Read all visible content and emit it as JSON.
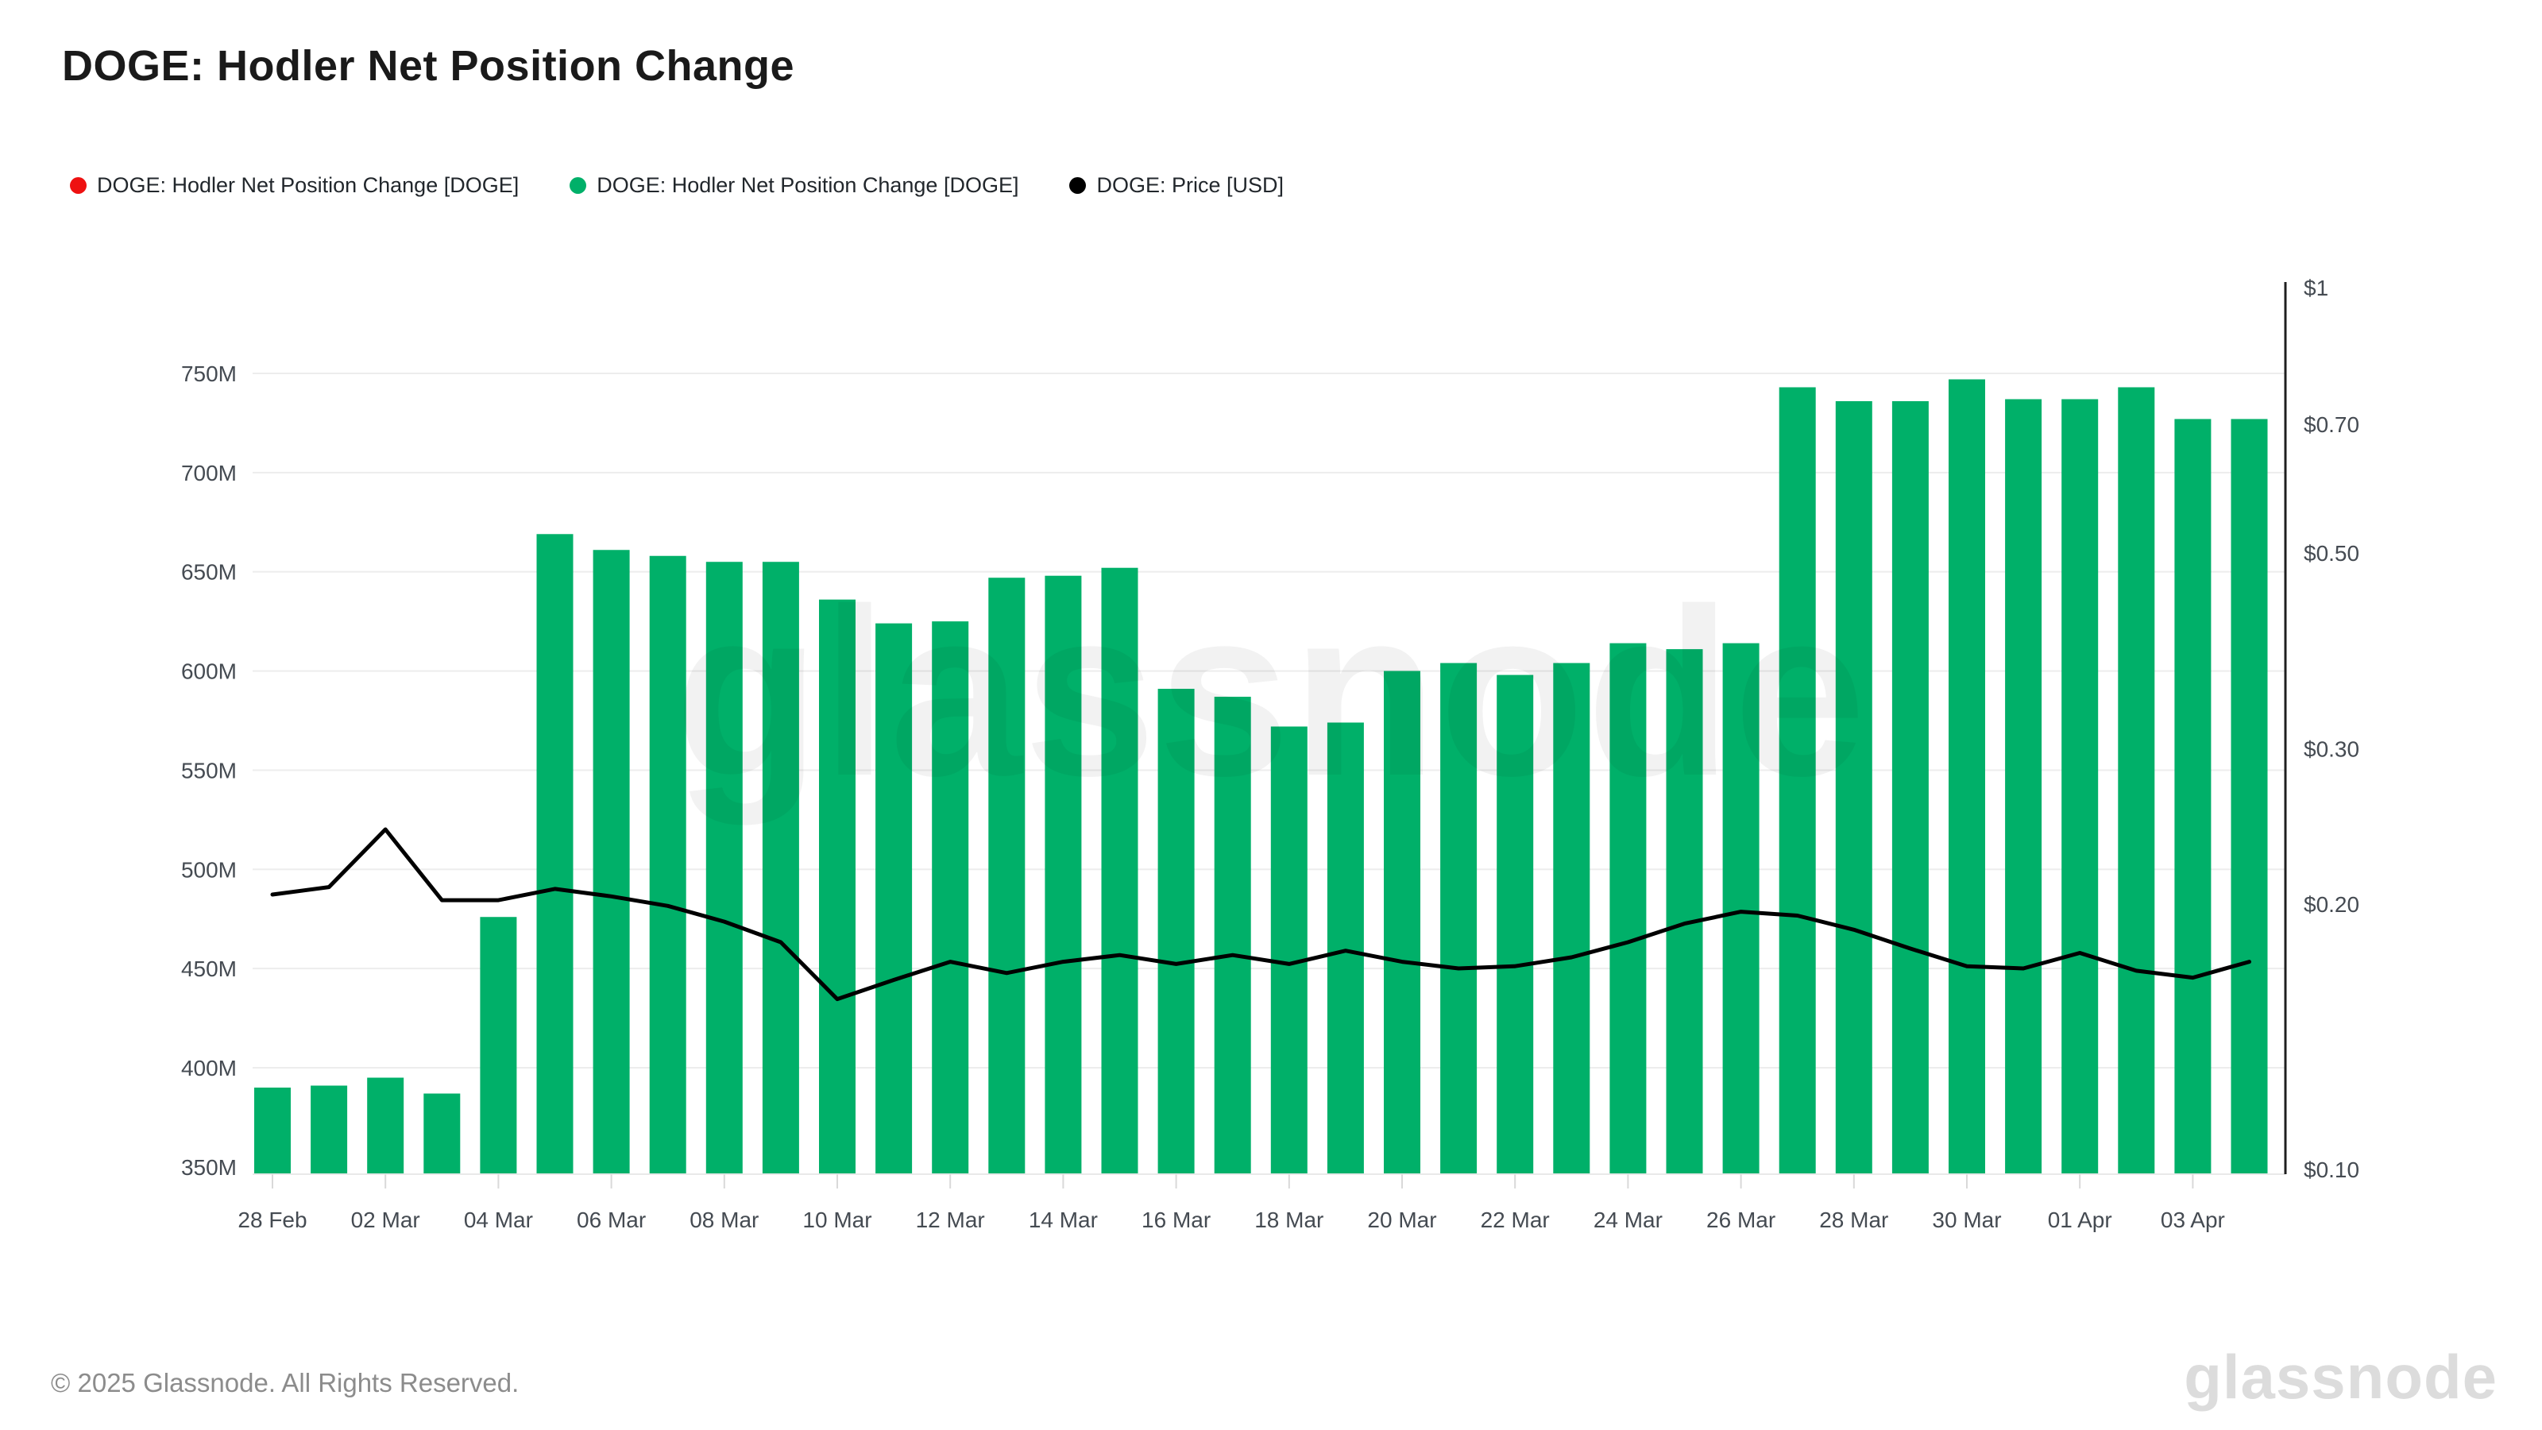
{
  "page": {
    "title": "DOGE: Hodler Net Position Change"
  },
  "legend": [
    {
      "label": "DOGE: Hodler Net Position Change [DOGE]",
      "color": "#ee1111"
    },
    {
      "label": "DOGE: Hodler Net Position Change [DOGE]",
      "color": "#00b069"
    },
    {
      "label": "DOGE: Price [USD]",
      "color": "#000000"
    }
  ],
  "watermark": "glassnode",
  "footer": {
    "copyright": "© 2025 Glassnode. All Rights Reserved.",
    "logo": "glassnode"
  },
  "chart_data": {
    "type": "bar",
    "title": "DOGE: Hodler Net Position Change",
    "categories": [
      "28 Feb",
      "01 Mar",
      "02 Mar",
      "03 Mar",
      "04 Mar",
      "05 Mar",
      "06 Mar",
      "07 Mar",
      "08 Mar",
      "09 Mar",
      "10 Mar",
      "11 Mar",
      "12 Mar",
      "13 Mar",
      "14 Mar",
      "15 Mar",
      "16 Mar",
      "17 Mar",
      "18 Mar",
      "19 Mar",
      "20 Mar",
      "21 Mar",
      "22 Mar",
      "23 Mar",
      "24 Mar",
      "25 Mar",
      "26 Mar",
      "27 Mar",
      "28 Mar",
      "29 Mar",
      "30 Mar",
      "31 Mar",
      "01 Apr",
      "02 Apr",
      "03 Apr",
      "04 Apr"
    ],
    "series": [
      {
        "name": "DOGE: Hodler Net Position Change [DOGE]",
        "type": "bar",
        "axis": "left",
        "unit": "DOGE (millions)",
        "color": "#00b069",
        "values_millions": [
          390,
          391,
          395,
          387,
          476,
          669,
          661,
          658,
          655,
          655,
          636,
          624,
          625,
          647,
          648,
          652,
          591,
          587,
          572,
          574,
          600,
          604,
          598,
          604,
          614,
          611,
          614,
          743,
          736,
          736,
          747,
          737,
          737,
          743,
          727,
          727
        ]
      },
      {
        "name": "DOGE: Price [USD]",
        "type": "line",
        "axis": "right",
        "unit": "USD",
        "color": "#000000",
        "values_usd": [
          0.205,
          0.209,
          0.243,
          0.202,
          0.202,
          0.208,
          0.204,
          0.199,
          0.191,
          0.181,
          0.156,
          0.164,
          0.172,
          0.167,
          0.172,
          0.175,
          0.171,
          0.175,
          0.171,
          0.177,
          0.172,
          0.169,
          0.17,
          0.174,
          0.181,
          0.19,
          0.196,
          0.194,
          0.187,
          0.178,
          0.17,
          0.169,
          0.176,
          0.168,
          0.165,
          0.172
        ]
      }
    ],
    "left_axis": {
      "tick_labels": [
        "750M",
        "700M",
        "650M",
        "600M",
        "550M",
        "500M",
        "450M",
        "400M",
        "350M"
      ],
      "tick_values_millions": [
        750,
        700,
        650,
        600,
        550,
        500,
        450,
        400,
        350
      ],
      "range_millions": [
        346,
        796
      ],
      "scale": "linear"
    },
    "right_axis": {
      "tick_labels": [
        "$1",
        "$0.70",
        "$0.50",
        "$0.30",
        "$0.20",
        "$0.10"
      ],
      "tick_values_usd": [
        1,
        0.7,
        0.5,
        0.3,
        0.2,
        0.1
      ],
      "scale": "log"
    },
    "x_axis": {
      "tick_labels": [
        "28 Feb",
        "02 Mar",
        "04 Mar",
        "06 Mar",
        "08 Mar",
        "10 Mar",
        "12 Mar",
        "14 Mar",
        "16 Mar",
        "18 Mar",
        "20 Mar",
        "22 Mar",
        "24 Mar",
        "26 Mar",
        "28 Mar",
        "30 Mar",
        "01 Apr",
        "03 Apr"
      ],
      "tick_every": 2
    },
    "grid": "horizontal",
    "legend_position": "top-left"
  }
}
